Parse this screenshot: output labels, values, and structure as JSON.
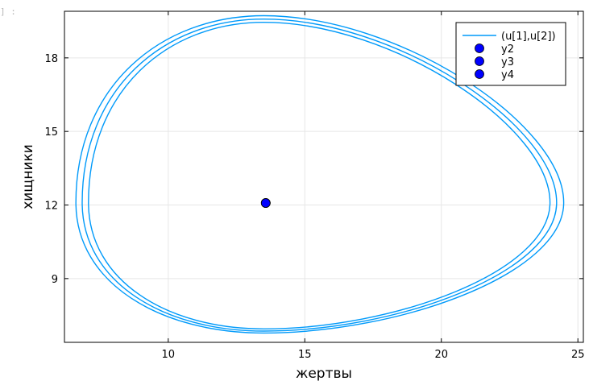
{
  "cell_prompt": "] :",
  "chart_data": {
    "type": "line",
    "xlabel": "жертвы",
    "ylabel": "хищники",
    "xlim": [
      6.2,
      25.2
    ],
    "ylim": [
      6.4,
      19.9
    ],
    "xticks": [
      10,
      15,
      20,
      25
    ],
    "yticks": [
      9,
      12,
      15,
      18
    ],
    "grid": true,
    "legend_position": "top-right",
    "series": [
      {
        "name": "(u[1],u[2])",
        "kind": "line",
        "color": "#009AFA",
        "loops": [
          {
            "x_left": 6.62,
            "x_right": 24.48,
            "y_bottom": 6.78,
            "y_top": 19.72
          },
          {
            "x_left": 6.85,
            "x_right": 24.22,
            "y_bottom": 6.86,
            "y_top": 19.58
          },
          {
            "x_left": 7.08,
            "x_right": 23.98,
            "y_bottom": 6.95,
            "y_top": 19.45
          }
        ],
        "x_at_top": 13.5,
        "x_at_bottom": 13.5,
        "y_at_left": 12.1,
        "y_at_right": 12.1
      },
      {
        "name": "y2",
        "kind": "scatter",
        "color": "#0000FF",
        "x": [
          13.57
        ],
        "y": [
          12.08
        ]
      },
      {
        "name": "y3",
        "kind": "scatter",
        "color": "#0000FF",
        "x": [
          13.57
        ],
        "y": [
          12.08
        ]
      },
      {
        "name": "y4",
        "kind": "scatter",
        "color": "#0000FF",
        "x": [
          13.57
        ],
        "y": [
          12.08
        ]
      }
    ]
  }
}
